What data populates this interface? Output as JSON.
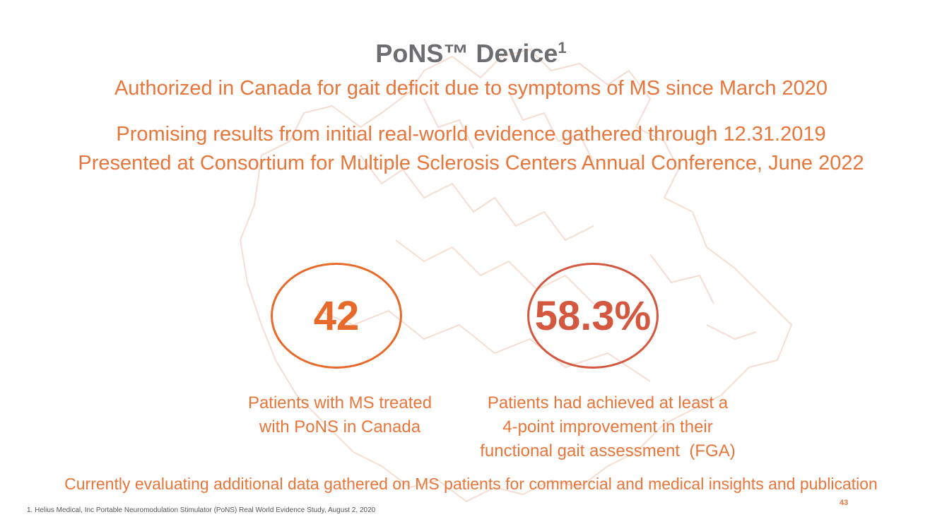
{
  "slide": {
    "title": "PoNS™ Device",
    "title_superscript": "1",
    "subtitle_line1": "Authorized in Canada for gait deficit due to symptoms of MS since March 2020",
    "subtitle_line2": "Promising results from initial real-world evidence gathered through 12.31.2019",
    "subtitle_line3": "Presented at Consortium for Multiple Sclerosis Centers Annual Conference, June 2022",
    "stats": [
      {
        "value": "42",
        "caption_line1": "Patients with MS treated",
        "caption_line2": "with PoNS in Canada"
      },
      {
        "value": "58.3%",
        "caption_line1": "Patients had achieved at least a",
        "caption_line2": "4-point improvement in their",
        "caption_line3": "functional gait assessment  (FGA)"
      }
    ],
    "bottom_statement": "Currently evaluating additional data gathered on MS patients for commercial and medical insights and publication",
    "footnote": "1. Helius Medical, Inc Portable Neuromodulation Stimulator (PoNS) Real World Evidence Study, August 2, 2020",
    "page_number": "43"
  },
  "colors": {
    "title": "#6d6e71",
    "accent_orange": "#e8753a",
    "circle_1": "#e86a2a",
    "circle_2": "#d4583f",
    "watermark": "#f6ddd2"
  },
  "decorations": {
    "background_icon": "canada-map-outline-icon"
  }
}
